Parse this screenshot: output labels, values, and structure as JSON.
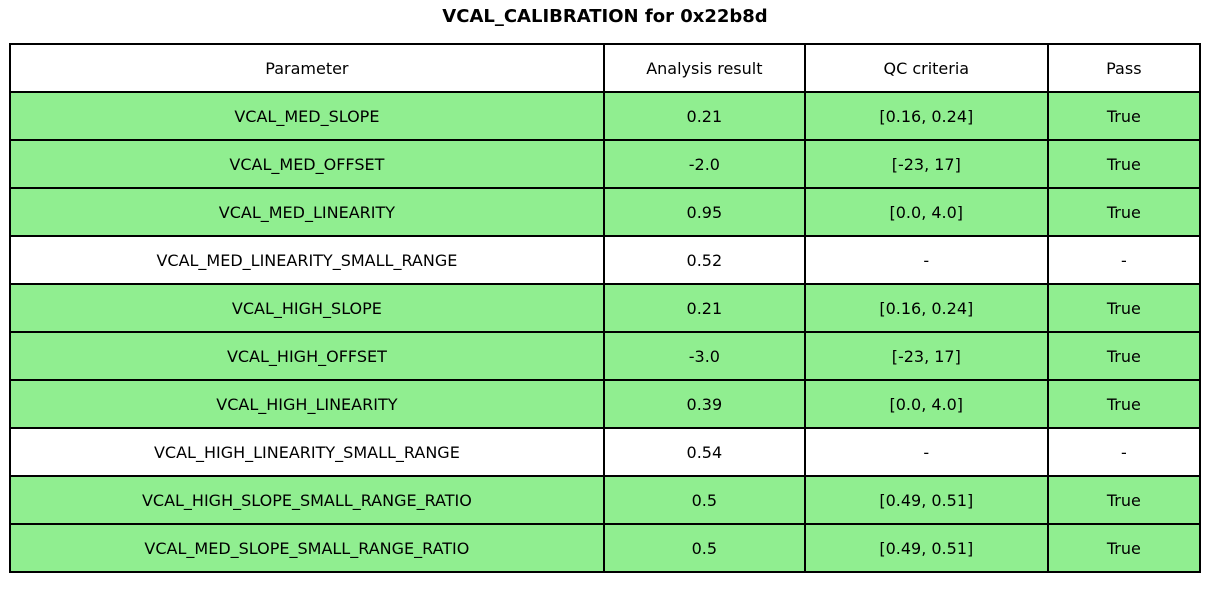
{
  "title": "VCAL_CALIBRATION for 0x22b8d",
  "colors": {
    "pass_row_green": "#90EE90",
    "neutral_row_white": "#FFFFFF",
    "border": "#000000",
    "text": "#000000"
  },
  "chart_data": {
    "type": "table",
    "title": "VCAL_CALIBRATION for 0x22b8d",
    "columns": [
      "Parameter",
      "Analysis result",
      "QC criteria",
      "Pass"
    ],
    "rows": [
      {
        "parameter": "VCAL_MED_SLOPE",
        "result": "0.21",
        "criteria": "[0.16, 0.24]",
        "pass": "True",
        "highlight": true
      },
      {
        "parameter": "VCAL_MED_OFFSET",
        "result": "-2.0",
        "criteria": "[-23, 17]",
        "pass": "True",
        "highlight": true
      },
      {
        "parameter": "VCAL_MED_LINEARITY",
        "result": "0.95",
        "criteria": "[0.0, 4.0]",
        "pass": "True",
        "highlight": true
      },
      {
        "parameter": "VCAL_MED_LINEARITY_SMALL_RANGE",
        "result": "0.52",
        "criteria": "-",
        "pass": "-",
        "highlight": false
      },
      {
        "parameter": "VCAL_HIGH_SLOPE",
        "result": "0.21",
        "criteria": "[0.16, 0.24]",
        "pass": "True",
        "highlight": true
      },
      {
        "parameter": "VCAL_HIGH_OFFSET",
        "result": "-3.0",
        "criteria": "[-23, 17]",
        "pass": "True",
        "highlight": true
      },
      {
        "parameter": "VCAL_HIGH_LINEARITY",
        "result": "0.39",
        "criteria": "[0.0, 4.0]",
        "pass": "True",
        "highlight": true
      },
      {
        "parameter": "VCAL_HIGH_LINEARITY_SMALL_RANGE",
        "result": "0.54",
        "criteria": "-",
        "pass": "-",
        "highlight": false
      },
      {
        "parameter": "VCAL_HIGH_SLOPE_SMALL_RANGE_RATIO",
        "result": "0.5",
        "criteria": "[0.49, 0.51]",
        "pass": "True",
        "highlight": true
      },
      {
        "parameter": "VCAL_MED_SLOPE_SMALL_RANGE_RATIO",
        "result": "0.5",
        "criteria": "[0.49, 0.51]",
        "pass": "True",
        "highlight": true
      }
    ],
    "layout": {
      "legend": "none",
      "grid": "full-cell-borders",
      "highlight_color": "#90EE90"
    }
  }
}
